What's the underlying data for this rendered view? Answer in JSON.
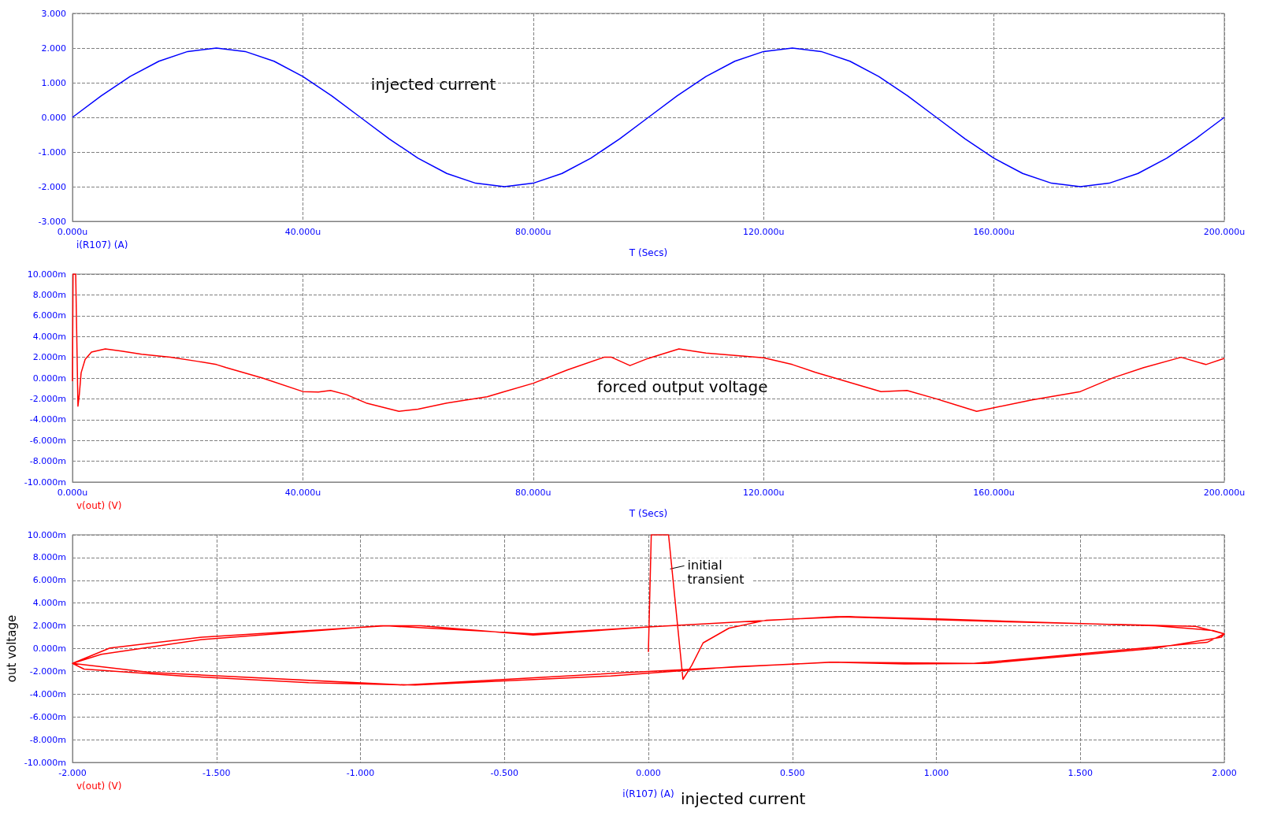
{
  "chart_data": [
    {
      "type": "line",
      "xlabel": "T (Secs)",
      "annotations": [
        "injected current"
      ],
      "grid": true,
      "legend": "bottom left",
      "marker": "none",
      "x": [
        0,
        5,
        10,
        15,
        20,
        25,
        30,
        35,
        40,
        45,
        50,
        55,
        60,
        65,
        70,
        75,
        80,
        85,
        90,
        95,
        100,
        105,
        110,
        115,
        120,
        125,
        130,
        135,
        140,
        145,
        150,
        155,
        160,
        165,
        170,
        175,
        180,
        185,
        190,
        195,
        200
      ],
      "series": [
        {
          "name": "i(R107) (A)",
          "color": "#0000ff",
          "values": [
            0,
            0.62,
            1.18,
            1.62,
            1.9,
            2.0,
            1.9,
            1.62,
            1.18,
            0.62,
            0,
            -0.62,
            -1.18,
            -1.62,
            -1.9,
            -2.0,
            -1.9,
            -1.62,
            -1.18,
            -0.62,
            0,
            0.62,
            1.18,
            1.62,
            1.9,
            2.0,
            1.9,
            1.62,
            1.18,
            0.62,
            0,
            -0.62,
            -1.18,
            -1.62,
            -1.9,
            -2.0,
            -1.9,
            -1.62,
            -1.18,
            -0.62,
            0
          ]
        }
      ],
      "xlim": [
        0,
        200
      ],
      "xticks": [
        {
          "value": 0,
          "label": "0.000u"
        },
        {
          "value": 40,
          "label": "40.000u"
        },
        {
          "value": 80,
          "label": "80.000u"
        },
        {
          "value": 120,
          "label": "120.000u"
        },
        {
          "value": 160,
          "label": "160.000u"
        },
        {
          "value": 200,
          "label": "200.000u"
        }
      ],
      "ylim": [
        -3,
        3
      ],
      "yticks": [
        {
          "value": -3,
          "label": "-3.000"
        },
        {
          "value": -2,
          "label": "-2.000"
        },
        {
          "value": -1,
          "label": "-1.000"
        },
        {
          "value": 0,
          "label": "0.000"
        },
        {
          "value": 1,
          "label": "1.000"
        },
        {
          "value": 2,
          "label": "2.000"
        },
        {
          "value": 3,
          "label": "3.000"
        }
      ]
    },
    {
      "type": "line",
      "xlabel": "T (Secs)",
      "annotations": [
        "forced output voltage"
      ],
      "grid": true,
      "legend": "bottom left",
      "marker": "none",
      "x": [
        0,
        0.1,
        0.56,
        0.95,
        1.2,
        1.5,
        2.2,
        3.3,
        5.7,
        8.5,
        12,
        17,
        21.8,
        25,
        26.7,
        33,
        40,
        42.7,
        44.8,
        47.6,
        51,
        56.7,
        60,
        65,
        72,
        75,
        80,
        86,
        92.3,
        93.6,
        96.8,
        100,
        105.3,
        110,
        120,
        125,
        129,
        140.4,
        144.9,
        150,
        157,
        166.6,
        175,
        180.8,
        186,
        192.5,
        196.8,
        200
      ],
      "series": [
        {
          "name": "v(out) (V)",
          "color": "#ff0000",
          "values": [
            -0.3,
            10,
            10,
            -2.7,
            -1.5,
            0.5,
            1.8,
            2.5,
            2.8,
            2.6,
            2.3,
            2.0,
            1.6,
            1.3,
            1.0,
            0.0,
            -1.3,
            -1.35,
            -1.2,
            -1.6,
            -2.4,
            -3.2,
            -3.0,
            -2.4,
            -1.8,
            -1.3,
            -0.5,
            0.8,
            2.0,
            2.0,
            1.2,
            1.9,
            2.8,
            2.4,
            1.95,
            1.3,
            0.55,
            -1.3,
            -1.2,
            -2.0,
            -3.2,
            -2.1,
            -1.3,
            0.05,
            1.0,
            2.0,
            1.3,
            1.9
          ]
        }
      ],
      "xlim": [
        0,
        200
      ],
      "xticks": [
        {
          "value": 0,
          "label": "0.000u"
        },
        {
          "value": 40,
          "label": "40.000u"
        },
        {
          "value": 80,
          "label": "80.000u"
        },
        {
          "value": 120,
          "label": "120.000u"
        },
        {
          "value": 160,
          "label": "160.000u"
        },
        {
          "value": 200,
          "label": "200.000u"
        }
      ],
      "ylim": [
        -10,
        10
      ],
      "yticks": [
        {
          "value": -10,
          "label": "-10.000m"
        },
        {
          "value": -8,
          "label": "-8.000m"
        },
        {
          "value": -6,
          "label": "-6.000m"
        },
        {
          "value": -4,
          "label": "-4.000m"
        },
        {
          "value": -2,
          "label": "-2.000m"
        },
        {
          "value": 0,
          "label": "0.000m"
        },
        {
          "value": 2,
          "label": "2.000m"
        },
        {
          "value": 4,
          "label": "4.000m"
        },
        {
          "value": 6,
          "label": "6.000m"
        },
        {
          "value": 8,
          "label": "8.000m"
        },
        {
          "value": 10,
          "label": "10.000m"
        }
      ]
    },
    {
      "type": "line",
      "xlabel": "i(R107) (A)",
      "ylabel": "out voltage",
      "annotations": [
        "injected current",
        {
          "text": "initial transient",
          "x": 0.07,
          "y": 7
        }
      ],
      "grid": true,
      "legend": "bottom left",
      "marker": "none",
      "series": [
        {
          "name": "v(out) (V)",
          "color": "#ff0000",
          "x": [
            0,
            0.01,
            0.07,
            0.12,
            0.15,
            0.19,
            0.28,
            0.41,
            0.7,
            1.02,
            1.37,
            1.76,
            1.96,
            2.0,
            1.99,
            1.75,
            1.18,
            0.89,
            0.64,
            0.3,
            -0.13,
            -0.81,
            -1.18,
            -1.62,
            -1.96,
            -2.0,
            -1.9,
            -1.55,
            -0.93,
            -0.79,
            -0.4,
            0,
            0.65,
            1.18,
            1.9,
            2.0,
            1.94,
            1.13,
            0.63,
            0,
            -0.85,
            -1.73,
            -2.0,
            -1.87,
            -1.55,
            -0.91,
            -0.4,
            0
          ],
          "values": [
            -0.3,
            10,
            10,
            -2.7,
            -1.5,
            0.5,
            1.8,
            2.5,
            2.8,
            2.6,
            2.3,
            2.0,
            1.6,
            1.3,
            1.0,
            0.0,
            -1.3,
            -1.35,
            -1.2,
            -1.6,
            -2.4,
            -3.2,
            -3.0,
            -2.4,
            -1.8,
            -1.3,
            -0.5,
            0.8,
            2.0,
            2.0,
            1.2,
            1.9,
            2.8,
            2.4,
            1.95,
            1.3,
            0.55,
            -1.3,
            -1.2,
            -2.0,
            -3.2,
            -2.1,
            -1.3,
            0.05,
            1.0,
            2.0,
            1.3,
            1.9
          ]
        }
      ],
      "xlim": [
        -2,
        2
      ],
      "xticks": [
        {
          "value": -2,
          "label": "-2.000"
        },
        {
          "value": -1.5,
          "label": "-1.500"
        },
        {
          "value": -1,
          "label": "-1.000"
        },
        {
          "value": -0.5,
          "label": "-0.500"
        },
        {
          "value": 0,
          "label": "0.000"
        },
        {
          "value": 0.5,
          "label": "0.500"
        },
        {
          "value": 1,
          "label": "1.000"
        },
        {
          "value": 1.5,
          "label": "1.500"
        },
        {
          "value": 2,
          "label": "2.000"
        }
      ],
      "ylim": [
        -10,
        10
      ],
      "yticks": [
        {
          "value": -10,
          "label": "-10.000m"
        },
        {
          "value": -8,
          "label": "-8.000m"
        },
        {
          "value": -6,
          "label": "-6.000m"
        },
        {
          "value": -4,
          "label": "-4.000m"
        },
        {
          "value": -2,
          "label": "-2.000m"
        },
        {
          "value": 0,
          "label": "0.000m"
        },
        {
          "value": 2,
          "label": "2.000m"
        },
        {
          "value": 4,
          "label": "4.000m"
        },
        {
          "value": 6,
          "label": "6.000m"
        },
        {
          "value": 8,
          "label": "8.000m"
        },
        {
          "value": 10,
          "label": "10.000m"
        }
      ]
    }
  ]
}
